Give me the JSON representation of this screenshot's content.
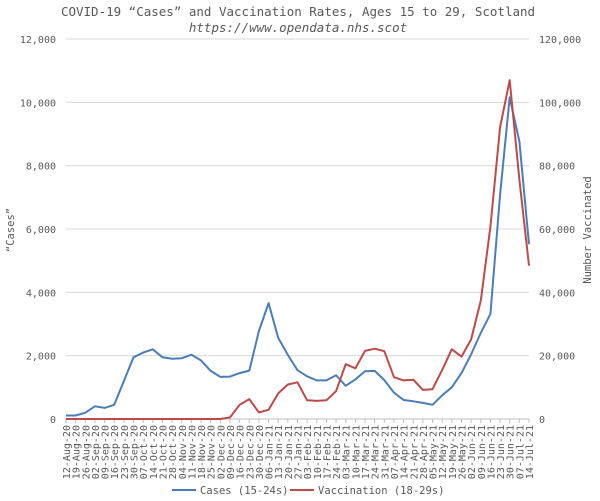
{
  "chart_data": {
    "type": "line",
    "title": "COVID-19 “Cases” and Vaccination Rates, Ages 15 to 29, Scotland",
    "subtitle": "https://www.opendata.nhs.scot",
    "ylabel_left": "“Cases”",
    "ylabel_right": "Number Vaccinated",
    "ylim_left": [
      0,
      12000
    ],
    "ylim_right": [
      0,
      120000
    ],
    "yticks_left": [
      "0",
      "2,000",
      "4,000",
      "6,000",
      "8,000",
      "10,000",
      "12,000"
    ],
    "yticks_right": [
      "0",
      "20,000",
      "40,000",
      "60,000",
      "80,000",
      "100,000",
      "120,000"
    ],
    "grid": true,
    "legend_position": "bottom",
    "categories": [
      "12-Aug-20",
      "19-Aug-20",
      "26-Aug-20",
      "02-Sep-20",
      "09-Sep-20",
      "16-Sep-20",
      "23-Sep-20",
      "30-Sep-20",
      "07-Oct-20",
      "14-Oct-20",
      "21-Oct-20",
      "28-Oct-20",
      "04-Nov-20",
      "11-Nov-20",
      "18-Nov-20",
      "25-Nov-20",
      "02-Dec-20",
      "09-Dec-20",
      "16-Dec-20",
      "23-Dec-20",
      "30-Dec-20",
      "06-Jan-21",
      "13-Jan-21",
      "20-Jan-21",
      "27-Jan-21",
      "03-Feb-21",
      "10-Feb-21",
      "17-Feb-21",
      "24-Feb-21",
      "03-Mar-21",
      "10-Mar-21",
      "17-Mar-21",
      "24-Mar-21",
      "31-Mar-21",
      "07-Apr-21",
      "14-Apr-21",
      "21-Apr-21",
      "28-Apr-21",
      "05-May-21",
      "12-May-21",
      "19-May-21",
      "26-May-21",
      "02-Jun-21",
      "09-Jun-21",
      "16-Jun-21",
      "23-Jun-21",
      "30-Jun-21",
      "07-Jul-21",
      "14-Jul-21"
    ],
    "series": [
      {
        "name": "Cases (15-24s)",
        "axis": "left",
        "color": "#4a7ebb",
        "values": [
          110,
          110,
          200,
          400,
          350,
          450,
          1200,
          1950,
          2100,
          2200,
          1950,
          1900,
          1920,
          2030,
          1850,
          1520,
          1330,
          1340,
          1450,
          1530,
          2780,
          3660,
          2560,
          2020,
          1540,
          1350,
          1220,
          1220,
          1380,
          1050,
          1250,
          1510,
          1520,
          1230,
          830,
          600,
          560,
          510,
          450,
          750,
          1000,
          1450,
          2040,
          2720,
          3320,
          7090,
          10160,
          8760,
          5520
        ]
      },
      {
        "name": "Vaccination (18-29s)",
        "axis": "right",
        "color": "#be4b48",
        "values": [
          0,
          0,
          0,
          0,
          0,
          0,
          0,
          0,
          0,
          0,
          0,
          0,
          0,
          0,
          0,
          0,
          0,
          500,
          4500,
          6300,
          2100,
          2900,
          8100,
          10900,
          11600,
          5900,
          5700,
          5900,
          8800,
          17300,
          16000,
          21500,
          22200,
          21400,
          13200,
          12200,
          12400,
          9200,
          9400,
          15500,
          22000,
          19700,
          25100,
          37400,
          60700,
          92200,
          107000,
          75500,
          48400
        ]
      }
    ]
  }
}
